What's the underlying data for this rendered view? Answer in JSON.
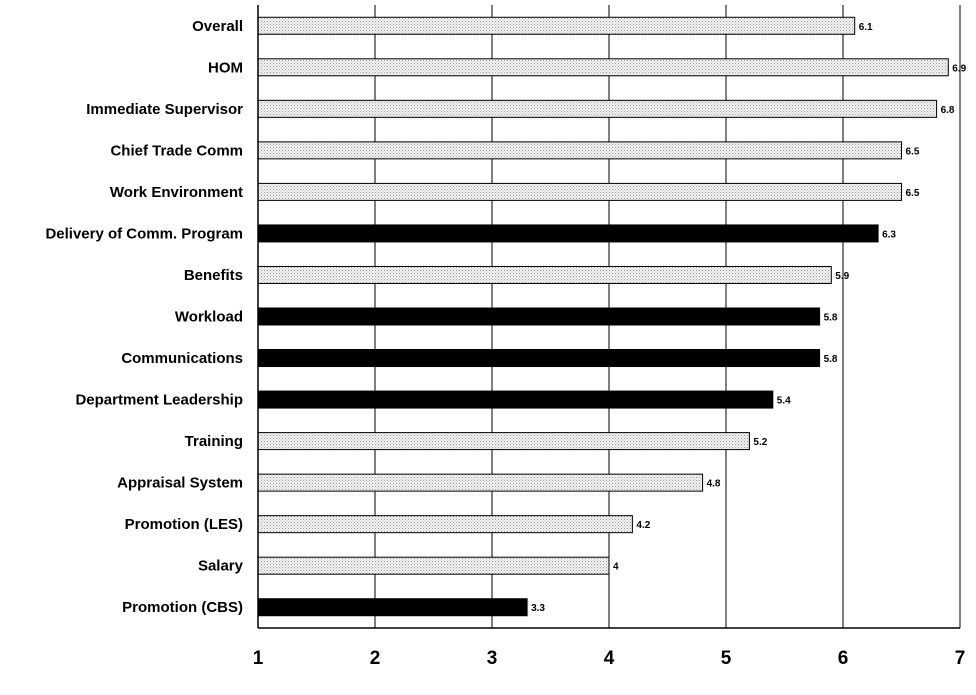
{
  "chart_data": {
    "type": "bar",
    "orientation": "horizontal",
    "title": "",
    "xlabel": "",
    "ylabel": "",
    "xlim": [
      1,
      7
    ],
    "x_ticks": [
      1,
      2,
      3,
      4,
      5,
      6,
      7
    ],
    "grid": true,
    "categories": [
      "Overall",
      "HOM",
      "Immediate Supervisor",
      "Chief Trade Comm",
      "Work Environment",
      "Delivery of Comm. Program",
      "Benefits",
      "Workload",
      "Communications",
      "Department Leadership",
      "Training",
      "Appraisal System",
      "Promotion (LES)",
      "Salary",
      "Promotion (CBS)"
    ],
    "values": [
      6.1,
      6.9,
      6.8,
      6.5,
      6.5,
      6.3,
      5.9,
      5.8,
      5.8,
      5.4,
      5.2,
      4.8,
      4.2,
      4,
      3.3
    ],
    "value_labels": [
      "6.1",
      "6.9",
      "6.8",
      "6.5",
      "6.5",
      "6.3",
      "5.9",
      "5.8",
      "5.8",
      "5.4",
      "5.2",
      "4.8",
      "4.2",
      "4",
      "3.3"
    ],
    "highlighted": [
      false,
      false,
      false,
      false,
      false,
      true,
      false,
      true,
      true,
      true,
      false,
      false,
      false,
      false,
      true
    ],
    "colors": {
      "normal_fill": "#ececec",
      "highlight_fill": "#000000",
      "stroke": "#000000"
    }
  }
}
